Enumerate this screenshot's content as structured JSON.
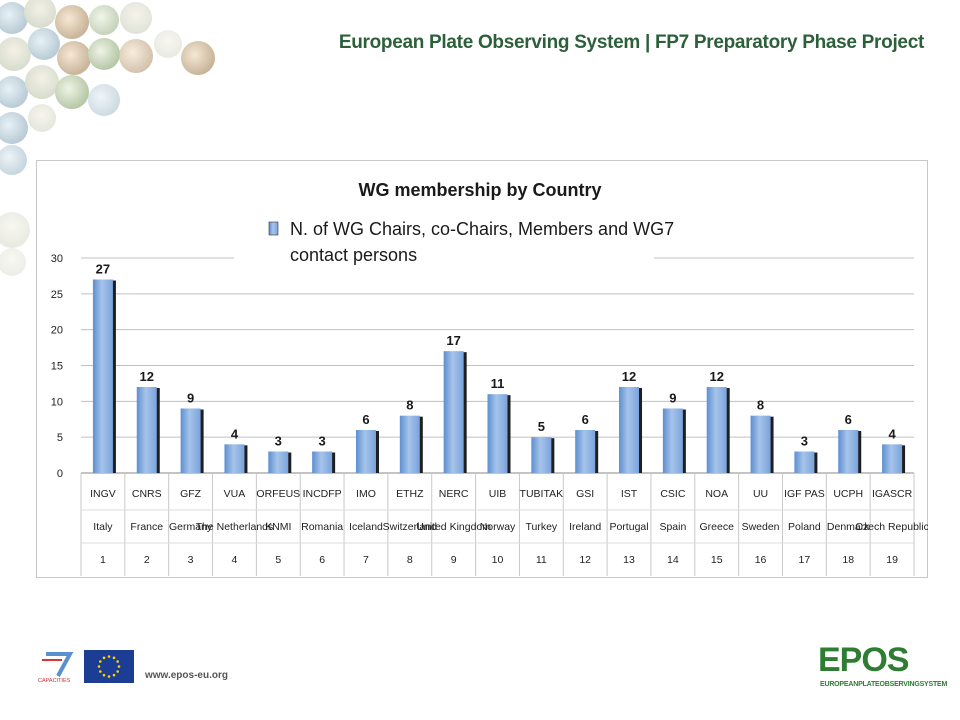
{
  "header": {
    "title": "European Plate Observing System | FP7 Preparatory Phase Project"
  },
  "footer": {
    "website": "www.epos-eu.org",
    "fp7_logo_text": "CAPACITIES",
    "epos_logo_text": "EPOS",
    "epos_logo_sub": "EUROPEANPLATEOBSERVINGSYSTEM"
  },
  "colors": {
    "bar": "#8fb4e3",
    "bar_dark": "#1f1f1f",
    "header": "#2d5f3a",
    "epos": "#2e7d32",
    "grid": "#c0c0c0"
  },
  "chart_data": {
    "type": "bar",
    "title": "WG membership by Country",
    "legend": "N. of WG Chairs, co-Chairs, Members and WG7 contact persons",
    "legend_position": "top",
    "ylim": [
      0,
      30
    ],
    "yticks": [
      0,
      5,
      10,
      15,
      20,
      25,
      30
    ],
    "grid": true,
    "categories": [
      "INGV",
      "CNRS",
      "GFZ",
      "VUA",
      "ORFEUS",
      "INCDFP",
      "IMO",
      "ETHZ",
      "NERC",
      "UIB",
      "TUBITAK",
      "GSI",
      "IST",
      "CSIC",
      "NOA",
      "UU",
      "IGF PAS",
      "UCPH",
      "IGASCR"
    ],
    "countries": [
      "Italy",
      "France",
      "Germany",
      "The Netherlands",
      "KNMI",
      "Romania",
      "Iceland",
      "Switzerland",
      "United Kingdom",
      "Norway",
      "Turkey",
      "Ireland",
      "Portugal",
      "Spain",
      "Greece",
      "Sweden",
      "Poland",
      "Denmark",
      "Czech Republic"
    ],
    "numbers": [
      "1",
      "2",
      "3",
      "4",
      "5",
      "6",
      "7",
      "8",
      "9",
      "10",
      "11",
      "12",
      "13",
      "14",
      "15",
      "16",
      "17",
      "18",
      "19"
    ],
    "series": [
      {
        "name": "N. of WG Chairs, co-Chairs, Members and WG7 contact persons",
        "values": [
          27,
          12,
          9,
          4,
          3,
          3,
          6,
          8,
          17,
          11,
          5,
          6,
          12,
          9,
          12,
          8,
          3,
          6,
          4
        ]
      }
    ]
  }
}
